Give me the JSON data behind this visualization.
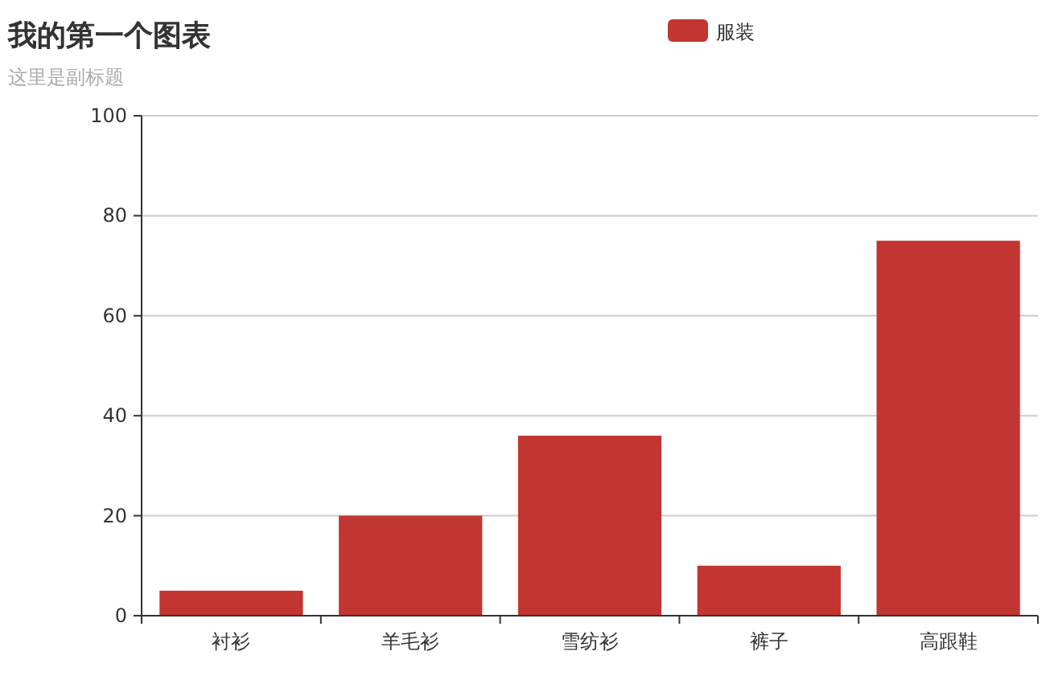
{
  "chart_data": {
    "type": "bar",
    "title": "我的第一个图表",
    "subtitle": "这里是副标题",
    "categories": [
      "衬衫",
      "羊毛衫",
      "雪纺衫",
      "裤子",
      "高跟鞋"
    ],
    "series": [
      {
        "name": "服装",
        "color": "#c23531",
        "values": [
          5,
          20,
          36,
          10,
          75
        ]
      }
    ],
    "ylim": [
      0,
      100
    ],
    "yticks": [
      0,
      20,
      40,
      60,
      80,
      100
    ],
    "grid": "y",
    "legend": "top"
  }
}
